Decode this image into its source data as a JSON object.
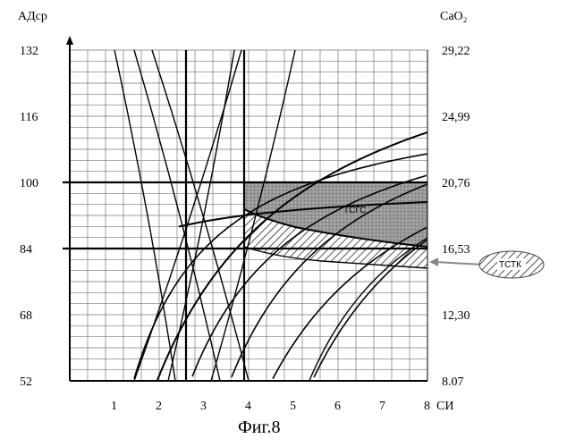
{
  "y_left_title": "АДср",
  "y_right_title": "CaO₂",
  "x_axis_unit": "СИ",
  "caption": "Фиг.8",
  "zone_upper_label": "ТСГС",
  "zone_lower_label": "ТСТК",
  "left_ticks": [
    "132",
    "116",
    "100",
    "84",
    "68",
    "52"
  ],
  "right_ticks": [
    "29,22",
    "24,99",
    "20,76",
    "16,53",
    "12,30",
    "8.07"
  ],
  "x_ticks": [
    "1",
    "2",
    "3",
    "4",
    "5",
    "6",
    "7",
    "8"
  ],
  "chart_data": {
    "type": "line",
    "x_range": [
      0,
      8
    ],
    "y_range": [
      52,
      132
    ],
    "y_range_right": [
      8.07,
      29.22
    ],
    "grid": true,
    "reference_lines": {
      "horizontal_adsr": [
        100,
        84
      ],
      "vertical_si": [
        2.6,
        3.9
      ]
    }
  }
}
